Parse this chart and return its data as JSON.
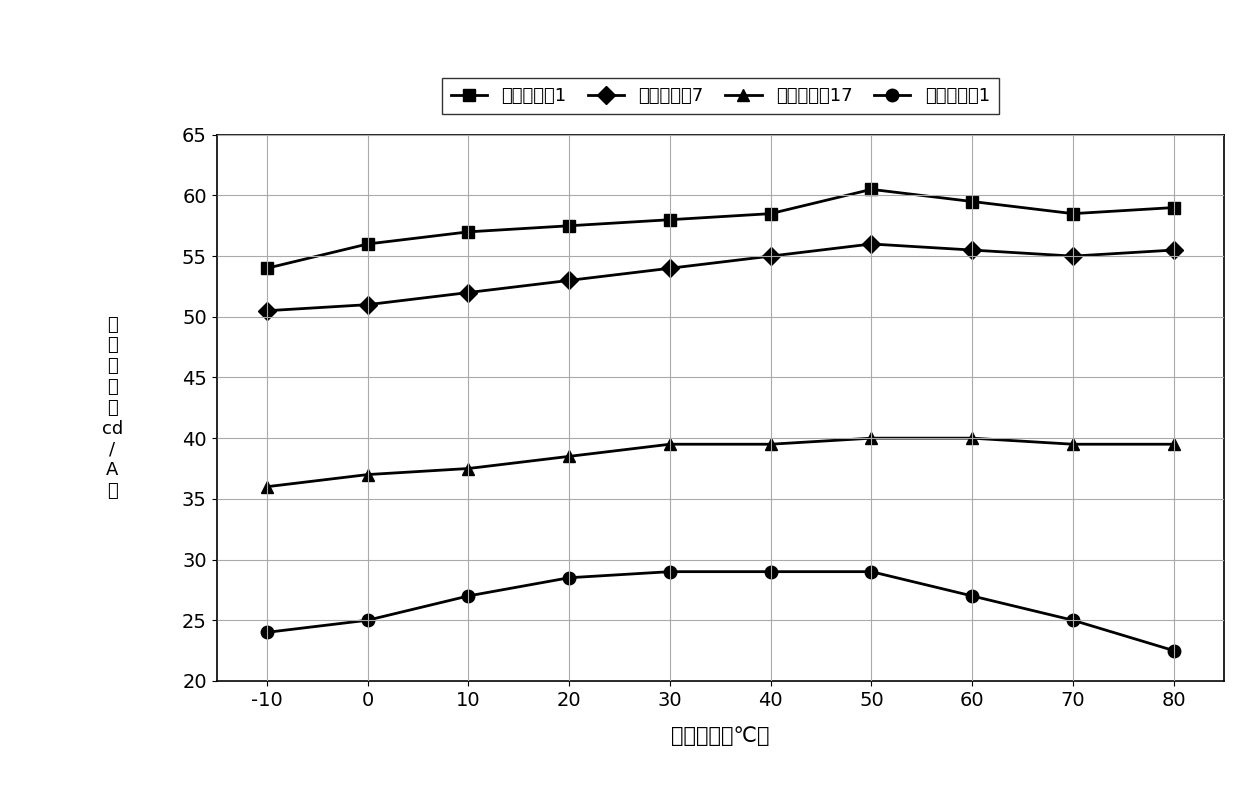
{
  "x": [
    -10,
    0,
    10,
    20,
    30,
    40,
    50,
    60,
    70,
    80
  ],
  "series": [
    {
      "name": "器件实施例1",
      "values": [
        54.0,
        56.0,
        57.0,
        57.5,
        58.0,
        58.5,
        60.5,
        59.5,
        58.5,
        59.0
      ],
      "marker": "s",
      "color": "#000000"
    },
    {
      "name": "器件实施例7",
      "values": [
        50.5,
        51.0,
        52.0,
        53.0,
        54.0,
        55.0,
        56.0,
        55.5,
        55.0,
        55.5
      ],
      "marker": "D",
      "color": "#000000"
    },
    {
      "name": "器件实施例17",
      "values": [
        36.0,
        37.0,
        37.5,
        38.5,
        39.5,
        39.5,
        40.0,
        40.0,
        39.5,
        39.5
      ],
      "marker": "^",
      "color": "#000000"
    },
    {
      "name": "器件比较例1",
      "values": [
        24.0,
        25.0,
        27.0,
        28.5,
        29.0,
        29.0,
        29.0,
        27.0,
        25.0,
        22.5
      ],
      "marker": "o",
      "color": "#000000"
    }
  ],
  "xlabel": "测量温度（℃）",
  "ylabel_lines": [
    "电",
    "流",
    "效",
    "率",
    "（",
    "cd",
    "/",
    "A",
    "）"
  ],
  "ylim": [
    20.0,
    65.0
  ],
  "yticks": [
    20.0,
    25.0,
    30.0,
    35.0,
    40.0,
    45.0,
    50.0,
    55.0,
    60.0,
    65.0
  ],
  "xticks": [
    -10,
    0,
    10,
    20,
    30,
    40,
    50,
    60,
    70,
    80
  ],
  "background_color": "#ffffff",
  "marker_size": 9,
  "line_width": 2.0
}
